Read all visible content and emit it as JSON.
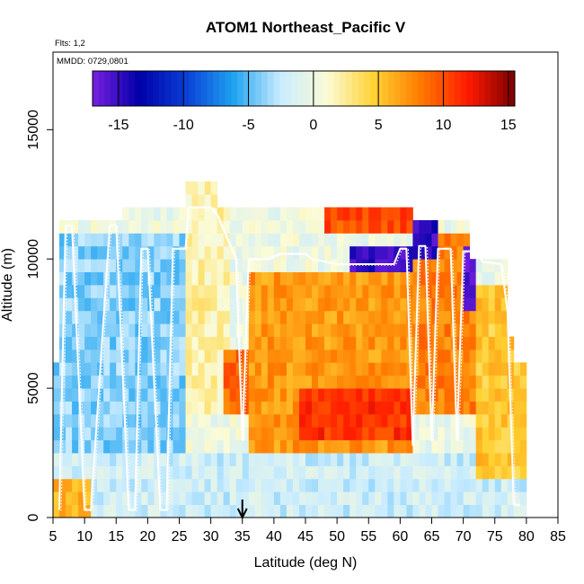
{
  "chart_data": {
    "type": "heatmap",
    "title": "ATOM1 Northeast_Pacific V",
    "annotations": {
      "flights": "Flts: 1,2",
      "dates": "MMDD: 0729,0801"
    },
    "xlabel": "Latitude (deg N)",
    "ylabel": "Altitude (m)",
    "xlim": [
      5,
      85
    ],
    "ylim": [
      0,
      18000
    ],
    "xticks": [
      5,
      10,
      15,
      20,
      25,
      30,
      35,
      40,
      45,
      50,
      55,
      60,
      65,
      70,
      75,
      80,
      85
    ],
    "yticks": [
      0,
      5000,
      10000,
      15000
    ],
    "colorbar": {
      "range": [
        -17,
        15.5
      ],
      "ticks": [
        -15,
        -10,
        -5,
        0,
        5,
        10,
        15
      ],
      "colors": [
        "#7a1fe0",
        "#0000a8",
        "#0b3fd6",
        "#1ea3f0",
        "#c9ecff",
        "#fbfbd6",
        "#ffd233",
        "#ff7a00",
        "#ff1a00",
        "#7a0000"
      ]
    },
    "grid": {
      "lat_start": 5,
      "lat_end": 80,
      "lat_step": 1,
      "alt_step": 500
    },
    "column_top_altitudes": [
      {
        "from": 5,
        "to": 6,
        "top": 6000
      },
      {
        "from": 6,
        "to": 10,
        "top": 11500
      },
      {
        "from": 10,
        "to": 16,
        "top": 11500
      },
      {
        "from": 16,
        "to": 20,
        "top": 12000
      },
      {
        "from": 20,
        "to": 26,
        "top": 12000
      },
      {
        "from": 26,
        "to": 31,
        "top": 13000
      },
      {
        "from": 31,
        "to": 62,
        "top": 12000
      },
      {
        "from": 62,
        "to": 71,
        "top": 11500
      },
      {
        "from": 71,
        "to": 77,
        "top": 10000
      },
      {
        "from": 77,
        "to": 78,
        "top": 7000
      },
      {
        "from": 78,
        "to": 79,
        "top": 6000
      },
      {
        "from": 79,
        "to": 80,
        "top": 6000
      }
    ],
    "anomaly_regions": [
      {
        "lat_range": [
          5,
          11
        ],
        "alt_range": [
          0,
          1500
        ],
        "v": 6
      },
      {
        "lat_range": [
          5,
          26
        ],
        "alt_range": [
          1000,
          11000
        ],
        "v": -4
      },
      {
        "lat_range": [
          26,
          33
        ],
        "alt_range": [
          4000,
          13000
        ],
        "v": 2
      },
      {
        "lat_range": [
          32,
          36
        ],
        "alt_range": [
          4000,
          6500
        ],
        "v": 9
      },
      {
        "lat_range": [
          36,
          62
        ],
        "alt_range": [
          2500,
          9500
        ],
        "v": 7
      },
      {
        "lat_range": [
          44,
          62
        ],
        "alt_range": [
          3000,
          5000
        ],
        "v": 11
      },
      {
        "lat_range": [
          48,
          62
        ],
        "alt_range": [
          11000,
          12000
        ],
        "v": 10
      },
      {
        "lat_range": [
          52,
          62
        ],
        "alt_range": [
          9500,
          10500
        ],
        "v": -15
      },
      {
        "lat_range": [
          62,
          72
        ],
        "alt_range": [
          4000,
          11000
        ],
        "v": 8
      },
      {
        "lat_range": [
          62,
          66
        ],
        "alt_range": [
          10200,
          11500
        ],
        "v": -15
      },
      {
        "lat_range": [
          70,
          72
        ],
        "alt_range": [
          8000,
          10500
        ],
        "v": -16
      },
      {
        "lat_range": [
          72,
          80
        ],
        "alt_range": [
          1500,
          9000
        ],
        "v": 5
      },
      {
        "lat_range": [
          5,
          80
        ],
        "alt_range": [
          0,
          2500
        ],
        "v": -2
      }
    ],
    "flight_track_lat_alt": [
      [
        6,
        300
      ],
      [
        7,
        11300
      ],
      [
        8,
        11300
      ],
      [
        10,
        300
      ],
      [
        11,
        300
      ],
      [
        14,
        11300
      ],
      [
        15,
        11300
      ],
      [
        17,
        300
      ],
      [
        18,
        300
      ],
      [
        19,
        10400
      ],
      [
        20,
        10400
      ],
      [
        22,
        300
      ],
      [
        23,
        300
      ],
      [
        24,
        10400
      ],
      [
        26,
        10400
      ],
      [
        26.5,
        12000
      ],
      [
        30,
        12000
      ],
      [
        31,
        11700
      ],
      [
        34,
        10000
      ],
      [
        35,
        3000
      ],
      [
        36,
        10000
      ],
      [
        39,
        10000
      ],
      [
        41,
        10200
      ],
      [
        45,
        10200
      ],
      [
        46,
        10000
      ],
      [
        50,
        9800
      ],
      [
        55,
        9800
      ],
      [
        59,
        9800
      ],
      [
        60,
        10400
      ],
      [
        61,
        10400
      ],
      [
        62,
        2800
      ],
      [
        63,
        10500
      ],
      [
        64,
        10500
      ],
      [
        65,
        3000
      ],
      [
        66,
        10400
      ],
      [
        68,
        10400
      ],
      [
        69,
        3000
      ],
      [
        70,
        10300
      ],
      [
        72,
        10300
      ],
      [
        73,
        9900
      ],
      [
        76,
        9800
      ],
      [
        77,
        8000
      ],
      [
        78,
        500
      ],
      [
        79,
        500
      ]
    ],
    "marker": {
      "lat": 35,
      "symbol": "arrow"
    }
  }
}
